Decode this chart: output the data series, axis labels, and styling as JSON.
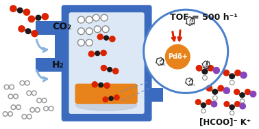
{
  "bg_color": "#ffffff",
  "reactor_color": "#3a6bbf",
  "reactor_inner": "#dce8f5",
  "reactor_shadow": "#c8daf0",
  "catalyst_color": "#e8821a",
  "catalyst_shadow": "#d8d0c8",
  "circle_color": "#4a80cc",
  "pd_color": "#e8821a",
  "pd_text": "Pdδ+",
  "tof_text": "TOF = 500 h⁻¹",
  "co2_label": "CO₂",
  "h2_label": "H₂",
  "formate_label": "[HCOO]⁻ K⁺",
  "c_black": "#1a1a1a",
  "o_red": "#dd2200",
  "h_white": "#ffffff",
  "k_purple": "#8844bb",
  "arrow_blue": "#8ab4e0",
  "red_arrow": "#dd2200",
  "dashed_line": "#6090cc",
  "nh2_label": "NH₂"
}
